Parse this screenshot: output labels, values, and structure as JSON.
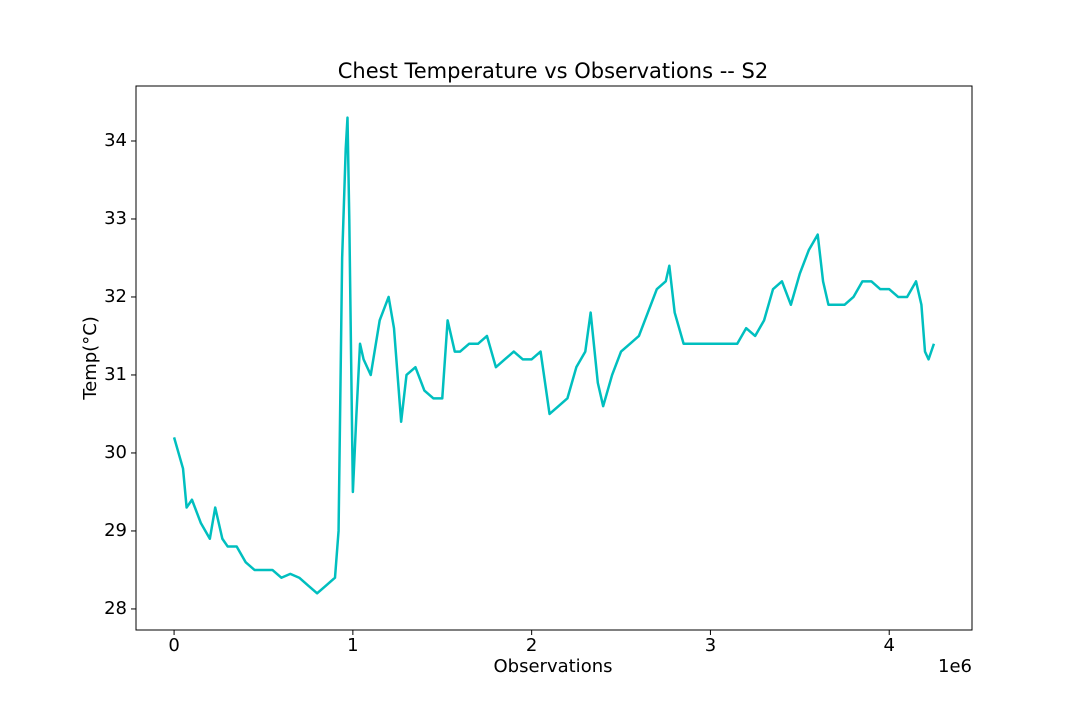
{
  "chart_data": {
    "type": "line",
    "title": "Chest Temperature vs Observations -- S2",
    "xlabel": "Observations",
    "ylabel": "Temp(°C)",
    "x_offset_label": "1e6",
    "x": [
      0,
      50000,
      70000,
      100000,
      150000,
      200000,
      230000,
      270000,
      300000,
      350000,
      400000,
      450000,
      500000,
      550000,
      600000,
      650000,
      700000,
      750000,
      800000,
      850000,
      900000,
      920000,
      940000,
      960000,
      970000,
      980000,
      1000000,
      1020000,
      1040000,
      1060000,
      1100000,
      1150000,
      1200000,
      1230000,
      1270000,
      1300000,
      1350000,
      1400000,
      1450000,
      1500000,
      1530000,
      1570000,
      1600000,
      1650000,
      1700000,
      1750000,
      1800000,
      1850000,
      1900000,
      1950000,
      2000000,
      2050000,
      2100000,
      2150000,
      2200000,
      2250000,
      2300000,
      2330000,
      2370000,
      2400000,
      2450000,
      2500000,
      2550000,
      2600000,
      2650000,
      2700000,
      2750000,
      2770000,
      2800000,
      2850000,
      2900000,
      2950000,
      3000000,
      3050000,
      3100000,
      3150000,
      3200000,
      3250000,
      3300000,
      3350000,
      3400000,
      3450000,
      3500000,
      3550000,
      3600000,
      3630000,
      3660000,
      3700000,
      3750000,
      3800000,
      3850000,
      3900000,
      3950000,
      4000000,
      4050000,
      4100000,
      4150000,
      4180000,
      4200000,
      4220000,
      4250000
    ],
    "series": [
      {
        "name": "Temp",
        "color": "#00bfbf",
        "values": [
          30.2,
          29.8,
          29.3,
          29.4,
          29.1,
          28.9,
          29.3,
          28.9,
          28.8,
          28.8,
          28.6,
          28.5,
          28.5,
          28.5,
          28.4,
          28.45,
          28.4,
          28.3,
          28.2,
          28.3,
          28.4,
          29.0,
          32.5,
          33.9,
          34.3,
          33.0,
          29.5,
          30.5,
          31.4,
          31.2,
          31.0,
          31.7,
          32.0,
          31.6,
          30.4,
          31.0,
          31.1,
          30.8,
          30.7,
          30.7,
          31.7,
          31.3,
          31.3,
          31.4,
          31.4,
          31.5,
          31.1,
          31.2,
          31.3,
          31.2,
          31.2,
          31.3,
          30.5,
          30.6,
          30.7,
          31.1,
          31.3,
          31.8,
          30.9,
          30.6,
          31.0,
          31.3,
          31.4,
          31.5,
          31.8,
          32.1,
          32.2,
          32.4,
          31.8,
          31.4,
          31.4,
          31.4,
          31.4,
          31.4,
          31.4,
          31.4,
          31.6,
          31.5,
          31.7,
          32.1,
          32.2,
          31.9,
          32.3,
          32.6,
          32.8,
          32.2,
          31.9,
          31.9,
          31.9,
          32.0,
          32.2,
          32.2,
          32.1,
          32.1,
          32.0,
          32.0,
          32.2,
          31.9,
          31.3,
          31.2,
          31.4
        ]
      }
    ],
    "xlim": [
      -213000,
      4463000
    ],
    "ylim": [
      27.73,
      34.705
    ],
    "xticks": [
      {
        "value": 0,
        "label": "0"
      },
      {
        "value": 1000000,
        "label": "1"
      },
      {
        "value": 2000000,
        "label": "2"
      },
      {
        "value": 3000000,
        "label": "3"
      },
      {
        "value": 4000000,
        "label": "4"
      }
    ],
    "yticks": [
      28,
      29,
      30,
      31,
      32,
      33,
      34
    ],
    "grid": false
  }
}
